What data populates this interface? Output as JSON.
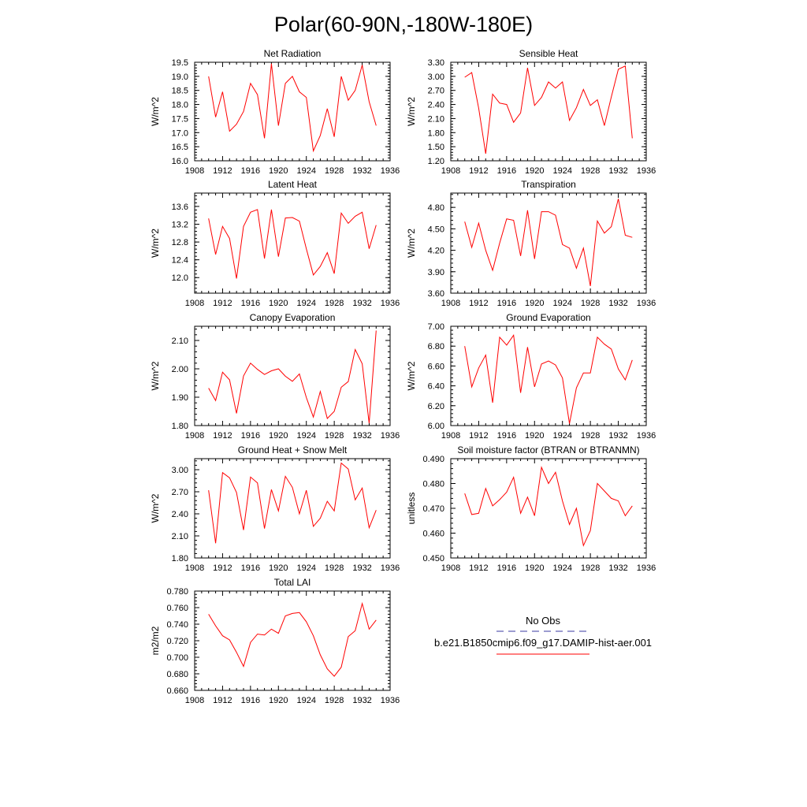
{
  "figure": {
    "title": "Polar(60-90N,-180W-180E)"
  },
  "legend": {
    "obs_label": "No Obs",
    "obs_color": "#3a3aa0",
    "model_label": "b.e21.B1850cmip6.f09_g17.DAMIP-hist-aer.001",
    "model_color": "#ff0000"
  },
  "chart_data": [
    {
      "type": "line",
      "title": "Net Radiation",
      "ylabel": "W/m^2",
      "xlim": [
        1908,
        1936
      ],
      "ylim": [
        16.0,
        19.5
      ],
      "xticks": [
        "1908",
        "1912",
        "1916",
        "1920",
        "1924",
        "1928",
        "1932",
        "1936"
      ],
      "yticks": [
        "16.0",
        "16.5",
        "17.0",
        "17.5",
        "18.0",
        "18.5",
        "19.0",
        "19.5"
      ],
      "series": [
        {
          "color": "#ff0000",
          "x": [
            1910,
            1911,
            1912,
            1913,
            1914,
            1915,
            1916,
            1917,
            1918,
            1919,
            1920,
            1921,
            1922,
            1923,
            1924,
            1925,
            1926,
            1927,
            1928,
            1929,
            1930,
            1931,
            1932,
            1933,
            1934
          ],
          "values": [
            19.0,
            17.55,
            18.45,
            17.05,
            17.3,
            17.75,
            18.75,
            18.35,
            16.8,
            19.45,
            17.25,
            18.75,
            19.0,
            18.45,
            18.25,
            16.35,
            16.9,
            17.85,
            16.85,
            19.0,
            18.15,
            18.5,
            19.4,
            18.1,
            17.25
          ]
        }
      ]
    },
    {
      "type": "line",
      "title": "Sensible Heat",
      "ylabel": "W/m^2",
      "xlim": [
        1908,
        1936
      ],
      "ylim": [
        1.2,
        3.3
      ],
      "xticks": [
        "1908",
        "1912",
        "1916",
        "1920",
        "1924",
        "1928",
        "1932",
        "1936"
      ],
      "yticks": [
        "1.20",
        "1.50",
        "1.80",
        "2.10",
        "2.40",
        "2.70",
        "3.00",
        "3.30"
      ],
      "series": [
        {
          "color": "#ff0000",
          "x": [
            1910,
            1911,
            1912,
            1913,
            1914,
            1915,
            1916,
            1917,
            1918,
            1919,
            1920,
            1921,
            1922,
            1923,
            1924,
            1925,
            1926,
            1927,
            1928,
            1929,
            1930,
            1931,
            1932,
            1933,
            1934
          ],
          "values": [
            2.98,
            3.08,
            2.32,
            1.35,
            2.62,
            2.43,
            2.4,
            2.02,
            2.22,
            3.18,
            2.38,
            2.55,
            2.88,
            2.75,
            2.88,
            2.06,
            2.33,
            2.72,
            2.38,
            2.5,
            1.95,
            2.56,
            3.15,
            3.22,
            1.68
          ]
        }
      ]
    },
    {
      "type": "line",
      "title": "Latent Heat",
      "ylabel": "W/m^2",
      "xlim": [
        1908,
        1936
      ],
      "ylim": [
        11.65,
        13.9
      ],
      "xticks": [
        "1908",
        "1912",
        "1916",
        "1920",
        "1924",
        "1928",
        "1932",
        "1936"
      ],
      "yticks": [
        "12.0",
        "12.4",
        "12.8",
        "13.2",
        "13.6"
      ],
      "series": [
        {
          "color": "#ff0000",
          "x": [
            1910,
            1911,
            1912,
            1913,
            1914,
            1915,
            1916,
            1917,
            1918,
            1919,
            1920,
            1921,
            1922,
            1923,
            1924,
            1925,
            1926,
            1927,
            1928,
            1929,
            1930,
            1931,
            1932,
            1933,
            1934
          ],
          "values": [
            13.33,
            12.52,
            13.15,
            12.88,
            11.98,
            13.15,
            13.47,
            13.53,
            12.43,
            13.53,
            12.47,
            13.34,
            13.35,
            13.27,
            12.65,
            12.06,
            12.25,
            12.56,
            12.09,
            13.45,
            13.22,
            13.38,
            13.47,
            12.65,
            13.18
          ]
        }
      ]
    },
    {
      "type": "line",
      "title": "Transpiration",
      "ylabel": "W/m^2",
      "xlim": [
        1908,
        1936
      ],
      "ylim": [
        3.6,
        5.0
      ],
      "xticks": [
        "1908",
        "1912",
        "1916",
        "1920",
        "1924",
        "1928",
        "1932",
        "1936"
      ],
      "yticks": [
        "3.60",
        "3.90",
        "4.20",
        "4.50",
        "4.80"
      ],
      "series": [
        {
          "color": "#ff0000",
          "x": [
            1910,
            1911,
            1912,
            1913,
            1914,
            1915,
            1916,
            1917,
            1918,
            1919,
            1920,
            1921,
            1922,
            1923,
            1924,
            1925,
            1926,
            1927,
            1928,
            1929,
            1930,
            1931,
            1932,
            1933,
            1934
          ],
          "values": [
            4.6,
            4.24,
            4.58,
            4.2,
            3.92,
            4.3,
            4.64,
            4.62,
            4.12,
            4.76,
            4.08,
            4.74,
            4.74,
            4.69,
            4.28,
            4.23,
            3.95,
            4.23,
            3.7,
            4.61,
            4.44,
            4.53,
            4.92,
            4.41,
            4.38
          ]
        }
      ]
    },
    {
      "type": "line",
      "title": "Canopy Evaporation",
      "ylabel": "W/m^2",
      "xlim": [
        1908,
        1936
      ],
      "ylim": [
        1.8,
        2.15
      ],
      "xticks": [
        "1908",
        "1912",
        "1916",
        "1920",
        "1924",
        "1928",
        "1932",
        "1936"
      ],
      "yticks": [
        "1.80",
        "1.90",
        "2.00",
        "2.10"
      ],
      "series": [
        {
          "color": "#ff0000",
          "x": [
            1910,
            1911,
            1912,
            1913,
            1914,
            1915,
            1916,
            1917,
            1918,
            1919,
            1920,
            1921,
            1922,
            1923,
            1924,
            1925,
            1926,
            1927,
            1928,
            1929,
            1930,
            1931,
            1932,
            1933,
            1934
          ],
          "values": [
            1.932,
            1.888,
            1.988,
            1.961,
            1.843,
            1.975,
            2.02,
            1.998,
            1.98,
            1.993,
            2.0,
            1.974,
            1.956,
            1.982,
            1.899,
            1.83,
            1.92,
            1.825,
            1.85,
            1.935,
            1.955,
            2.068,
            2.018,
            1.808,
            2.135
          ]
        }
      ]
    },
    {
      "type": "line",
      "title": "Ground Evaporation",
      "ylabel": "W/m^2",
      "xlim": [
        1908,
        1936
      ],
      "ylim": [
        6.0,
        7.0
      ],
      "xticks": [
        "1908",
        "1912",
        "1916",
        "1920",
        "1924",
        "1928",
        "1932",
        "1936"
      ],
      "yticks": [
        "6.00",
        "6.20",
        "6.40",
        "6.60",
        "6.80",
        "7.00"
      ],
      "series": [
        {
          "color": "#ff0000",
          "x": [
            1910,
            1911,
            1912,
            1913,
            1914,
            1915,
            1916,
            1917,
            1918,
            1919,
            1920,
            1921,
            1922,
            1923,
            1924,
            1925,
            1926,
            1927,
            1928,
            1929,
            1930,
            1931,
            1932,
            1933,
            1934
          ],
          "values": [
            6.8,
            6.39,
            6.58,
            6.71,
            6.23,
            6.89,
            6.81,
            6.91,
            6.33,
            6.79,
            6.39,
            6.62,
            6.65,
            6.61,
            6.48,
            6.02,
            6.38,
            6.53,
            6.53,
            6.89,
            6.82,
            6.77,
            6.57,
            6.46,
            6.66
          ]
        }
      ]
    },
    {
      "type": "line",
      "title": "Ground Heat + Snow Melt",
      "ylabel": "W/m^2",
      "xlim": [
        1908,
        1936
      ],
      "ylim": [
        1.8,
        3.15
      ],
      "xticks": [
        "1908",
        "1912",
        "1916",
        "1920",
        "1924",
        "1928",
        "1932",
        "1936"
      ],
      "yticks": [
        "1.80",
        "2.10",
        "2.40",
        "2.70",
        "3.00"
      ],
      "series": [
        {
          "color": "#ff0000",
          "x": [
            1910,
            1911,
            1912,
            1913,
            1914,
            1915,
            1916,
            1917,
            1918,
            1919,
            1920,
            1921,
            1922,
            1923,
            1924,
            1925,
            1926,
            1927,
            1928,
            1929,
            1930,
            1931,
            1932,
            1933,
            1934
          ],
          "values": [
            2.72,
            2.0,
            2.96,
            2.89,
            2.69,
            2.18,
            2.9,
            2.82,
            2.2,
            2.73,
            2.44,
            2.91,
            2.76,
            2.4,
            2.72,
            2.23,
            2.34,
            2.57,
            2.44,
            3.09,
            3.01,
            2.59,
            2.75,
            2.21,
            2.45
          ]
        }
      ]
    },
    {
      "type": "line",
      "title": "Soil moisture factor (BTRAN or BTRANMN)",
      "ylabel": "unitless",
      "xlim": [
        1908,
        1936
      ],
      "ylim": [
        0.45,
        0.49
      ],
      "xticks": [
        "1908",
        "1912",
        "1916",
        "1920",
        "1924",
        "1928",
        "1932",
        "1936"
      ],
      "yticks": [
        "0.450",
        "0.460",
        "0.470",
        "0.480",
        "0.490"
      ],
      "series": [
        {
          "color": "#ff0000",
          "x": [
            1910,
            1911,
            1912,
            1913,
            1914,
            1915,
            1916,
            1917,
            1918,
            1919,
            1920,
            1921,
            1922,
            1923,
            1924,
            1925,
            1926,
            1927,
            1928,
            1929,
            1930,
            1931,
            1932,
            1933,
            1934
          ],
          "values": [
            0.476,
            0.4675,
            0.468,
            0.478,
            0.471,
            0.4735,
            0.4765,
            0.4825,
            0.468,
            0.4745,
            0.467,
            0.4865,
            0.48,
            0.4845,
            0.473,
            0.4635,
            0.47,
            0.455,
            0.461,
            0.48,
            0.477,
            0.474,
            0.473,
            0.467,
            0.471
          ]
        }
      ]
    },
    {
      "type": "line",
      "title": "Total LAI",
      "ylabel": "m2/m2",
      "xlim": [
        1908,
        1936
      ],
      "ylim": [
        0.66,
        0.78
      ],
      "xticks": [
        "1908",
        "1912",
        "1916",
        "1920",
        "1924",
        "1928",
        "1932",
        "1936"
      ],
      "yticks": [
        "0.660",
        "0.680",
        "0.700",
        "0.720",
        "0.740",
        "0.760",
        "0.780"
      ],
      "series": [
        {
          "color": "#ff0000",
          "x": [
            1910,
            1911,
            1912,
            1913,
            1914,
            1915,
            1916,
            1917,
            1918,
            1919,
            1920,
            1921,
            1922,
            1923,
            1924,
            1925,
            1926,
            1927,
            1928,
            1929,
            1930,
            1931,
            1932,
            1933,
            1934
          ],
          "values": [
            0.752,
            0.738,
            0.726,
            0.721,
            0.706,
            0.689,
            0.718,
            0.728,
            0.727,
            0.734,
            0.729,
            0.75,
            0.753,
            0.754,
            0.743,
            0.726,
            0.703,
            0.686,
            0.677,
            0.688,
            0.725,
            0.732,
            0.765,
            0.734,
            0.745
          ]
        }
      ]
    }
  ]
}
